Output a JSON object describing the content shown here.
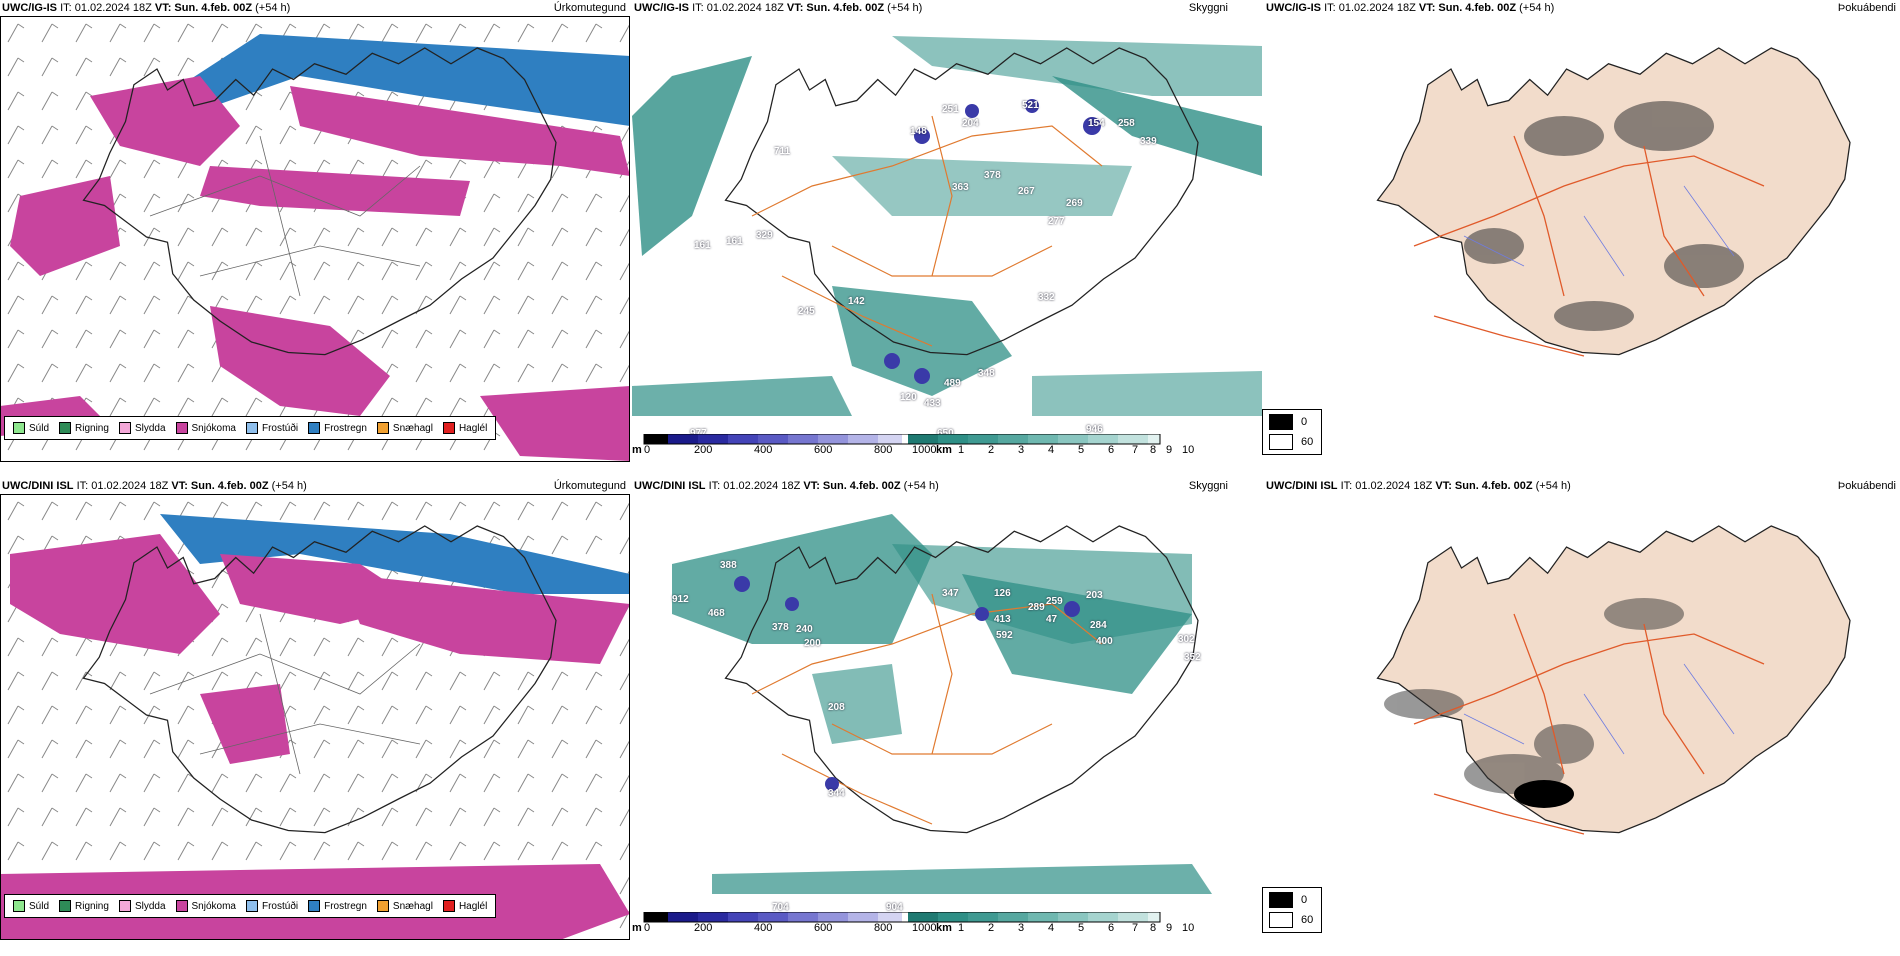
{
  "colors": {
    "sudd": "#8ee68e",
    "rigning": "#2e8b57",
    "slydda": "#f4a8d8",
    "snjokoma": "#c8449e",
    "frostudi": "#8fbfec",
    "frostregn": "#2f7fc1",
    "snaehagl": "#f0a030",
    "haglel": "#e02020",
    "vis_teal": "#2e8f86",
    "vis_blue": "#3a3aa8",
    "road": "#e07a30",
    "fog_bg": "#f2dccb",
    "fog_road": "#e05a2a"
  },
  "rows": [
    {
      "model": "UWC/IG-IS",
      "init": "IT: 01.02.2024 18Z",
      "valid_label": "VT:",
      "valid": "Sun. 4.feb. 00Z",
      "lead": "(+54 h)",
      "panels": [
        {
          "title": "Úrkomutegund"
        },
        {
          "title": "Skyggni",
          "labels": [
            "711",
            "148",
            "251",
            "204",
            "521",
            "154",
            "258",
            "339",
            "378",
            "363",
            "269",
            "277",
            "161",
            "161",
            "329",
            "245",
            "142",
            "120",
            "433",
            "489",
            "348",
            "267",
            "332",
            "977",
            "946",
            "650"
          ]
        },
        {
          "title": "Þokuábendi"
        }
      ]
    },
    {
      "model": "UWC/DINI ISL",
      "init": "IT: 01.02.2024 18Z",
      "valid_label": "VT:",
      "valid": "Sun. 4.feb. 00Z",
      "lead": "(+54 h)",
      "panels": [
        {
          "title": "Úrkomutegund"
        },
        {
          "title": "Skyggni",
          "labels": [
            "388",
            "912",
            "468",
            "378",
            "240",
            "200",
            "347",
            "126",
            "413",
            "592",
            "289",
            "259",
            "47",
            "203",
            "284",
            "400",
            "302",
            "352",
            "208",
            "344",
            "704",
            "904"
          ]
        },
        {
          "title": "Þokuábendi"
        }
      ]
    }
  ],
  "precip_legend": [
    "Súld",
    "Rigning",
    "Slydda",
    "Snjókoma",
    "Frostúði",
    "Frostregn",
    "Snæhagl",
    "Haglél"
  ],
  "vis_colorbar": {
    "height_unit": "m",
    "height_ticks": [
      "0",
      "200",
      "400",
      "600",
      "800",
      "1000"
    ],
    "km_unit": "km",
    "km_ticks": [
      "1",
      "2",
      "3",
      "4",
      "5",
      "6",
      "7",
      "8",
      "9",
      "10"
    ]
  },
  "fog_legend": {
    "black": "0",
    "white": "60"
  }
}
